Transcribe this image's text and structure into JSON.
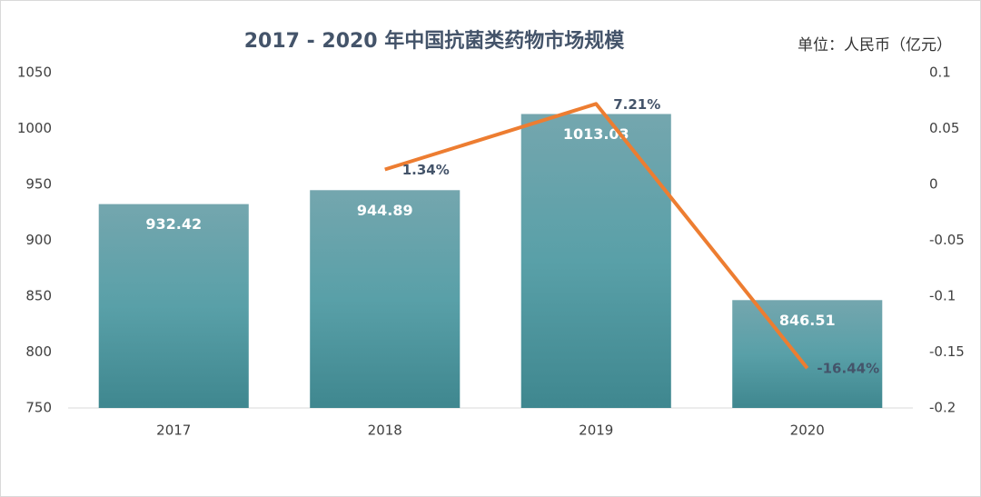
{
  "chart_data": {
    "type": "bar",
    "title": "2017 - 2020 年中国抗菌类药物市场规模",
    "annotation": "单位：人民币（亿元）",
    "categories": [
      "2017",
      "2018",
      "2019",
      "2020"
    ],
    "series": [
      {
        "type": "bar",
        "color": "#5a9ea7",
        "values": [
          932.42,
          944.89,
          1013.03,
          846.51
        ]
      },
      {
        "type": "line",
        "axis": "y2",
        "color": "#ed7d31",
        "values": [
          null,
          0.0134,
          0.0721,
          -0.1644
        ],
        "value_labels": [
          null,
          "1.34%",
          "7.21%",
          "-16.44%"
        ]
      }
    ],
    "ylim": [
      750,
      1050
    ],
    "yticks": [
      750,
      800,
      850,
      900,
      950,
      1000,
      1050
    ],
    "y2lim": [
      -0.2,
      0.1
    ],
    "y2ticks": [
      -0.2,
      -0.15,
      -0.1,
      -0.05,
      0,
      0.05,
      0.1
    ],
    "grid": false
  }
}
